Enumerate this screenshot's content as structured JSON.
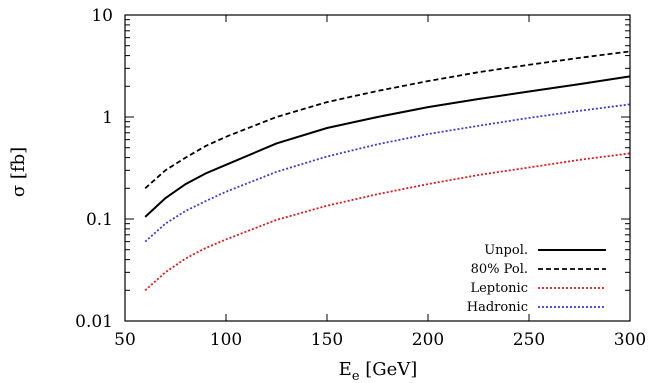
{
  "chart_data": {
    "type": "line",
    "xlabel": "E",
    "xlabel_sub": "e",
    "xlabel_unit": " [GeV]",
    "ylabel": "σ [fb]",
    "xlim": [
      50,
      300
    ],
    "ylim": [
      0.01,
      10
    ],
    "yscale": "log",
    "x_ticks": [
      50,
      100,
      150,
      200,
      250,
      300
    ],
    "x_tick_labels": [
      "50",
      "100",
      "150",
      "200",
      "250",
      "300"
    ],
    "y_ticks": [
      0.01,
      0.1,
      1,
      10
    ],
    "y_tick_labels": [
      "0.01",
      "0.1",
      "1",
      "10"
    ],
    "grid": false,
    "legend_position": "bottom-right",
    "series": [
      {
        "name": "Unpol.",
        "color": "#000000",
        "style": "solid",
        "x": [
          60,
          70,
          80,
          90,
          100,
          125,
          150,
          175,
          200,
          225,
          250,
          275,
          300
        ],
        "y": [
          0.105,
          0.16,
          0.22,
          0.28,
          0.34,
          0.55,
          0.78,
          1.0,
          1.25,
          1.5,
          1.78,
          2.1,
          2.5
        ]
      },
      {
        "name": "80% Pol.",
        "color": "#000000",
        "style": "dashed",
        "x": [
          60,
          70,
          80,
          90,
          100,
          125,
          150,
          175,
          200,
          225,
          250,
          275,
          300
        ],
        "y": [
          0.2,
          0.3,
          0.4,
          0.52,
          0.64,
          1.0,
          1.4,
          1.8,
          2.25,
          2.75,
          3.25,
          3.8,
          4.4
        ]
      },
      {
        "name": "Leptonic",
        "color": "#e8141a",
        "style": "dotted",
        "x": [
          60,
          70,
          80,
          90,
          100,
          125,
          150,
          175,
          200,
          225,
          250,
          275,
          300
        ],
        "y": [
          0.02,
          0.03,
          0.041,
          0.052,
          0.063,
          0.098,
          0.135,
          0.175,
          0.22,
          0.27,
          0.32,
          0.38,
          0.44
        ]
      },
      {
        "name": "Hadronic",
        "color": "#3a3ad9",
        "style": "dotted",
        "x": [
          60,
          70,
          80,
          90,
          100,
          125,
          150,
          175,
          200,
          225,
          250,
          275,
          300
        ],
        "y": [
          0.06,
          0.09,
          0.12,
          0.15,
          0.185,
          0.29,
          0.41,
          0.54,
          0.68,
          0.82,
          0.98,
          1.15,
          1.33
        ]
      }
    ]
  }
}
